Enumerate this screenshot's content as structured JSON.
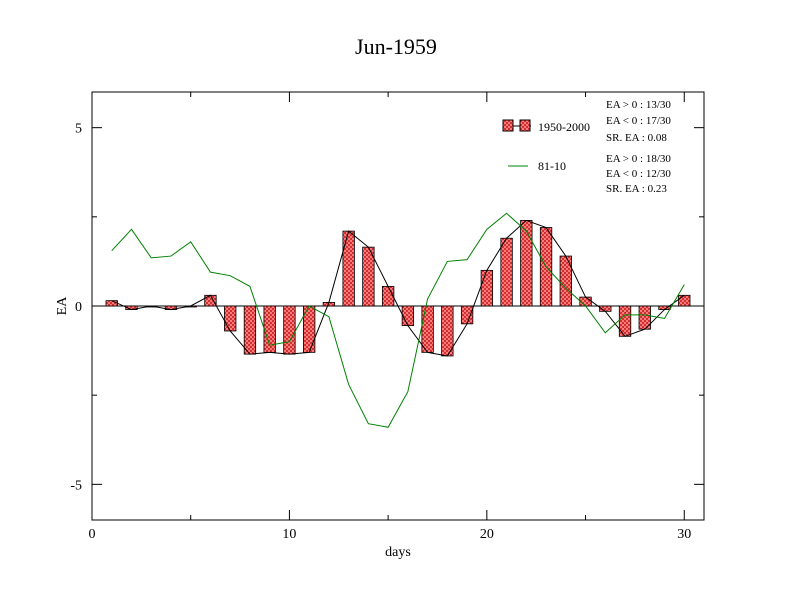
{
  "chart_data": {
    "type": "bar",
    "title": "Jun-1959",
    "xlabel": "days",
    "ylabel": "EA",
    "xlim": [
      0,
      31
    ],
    "ylim": [
      -6,
      6
    ],
    "xticks": [
      0,
      10,
      20,
      30
    ],
    "yticks": [
      -5,
      0,
      5
    ],
    "x": [
      1,
      2,
      3,
      4,
      5,
      6,
      7,
      8,
      9,
      10,
      11,
      12,
      13,
      14,
      15,
      16,
      17,
      18,
      19,
      20,
      21,
      22,
      23,
      24,
      25,
      26,
      27,
      28,
      29,
      30
    ],
    "series": [
      {
        "name": "1950-2000",
        "kind": "bar+line",
        "color": "#ff6b6b",
        "values": [
          0.15,
          -0.1,
          0.0,
          -0.1,
          0.0,
          0.3,
          -0.7,
          -1.35,
          -1.3,
          -1.35,
          -1.3,
          0.1,
          2.1,
          1.65,
          0.55,
          -0.55,
          -1.3,
          -1.4,
          -0.5,
          1.0,
          1.9,
          2.4,
          2.2,
          1.4,
          0.25,
          -0.15,
          -0.85,
          -0.65,
          -0.1,
          0.3
        ]
      },
      {
        "name": "81-10",
        "kind": "line",
        "color": "#008000",
        "values": [
          1.55,
          2.15,
          1.35,
          1.4,
          1.8,
          0.95,
          0.85,
          0.55,
          -1.1,
          -1.0,
          0.0,
          -0.3,
          -2.2,
          -3.3,
          -3.4,
          -2.4,
          0.2,
          1.25,
          1.3,
          2.15,
          2.6,
          2.1,
          1.1,
          0.5,
          0.0,
          -0.75,
          -0.25,
          -0.25,
          -0.35,
          0.6
        ]
      }
    ],
    "legend": {
      "placement": "top-right",
      "entries": [
        "1950-2000",
        "81-10"
      ]
    },
    "annotations": {
      "set1": [
        "EA > 0 : 13/30",
        "EA < 0 : 17/30",
        "SR. EA :  0.08"
      ],
      "set2": [
        "EA > 0 : 18/30",
        "EA < 0 : 12/30",
        "SR. EA :  0.23"
      ]
    },
    "grid": false
  }
}
